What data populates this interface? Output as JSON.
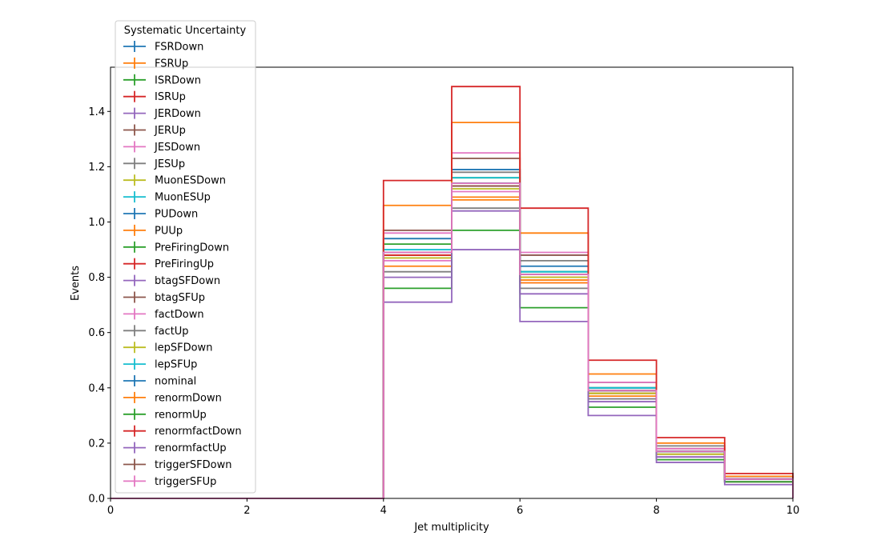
{
  "chart_data": {
    "type": "step",
    "title": "",
    "xlabel": "Jet multiplicity",
    "ylabel": "Events",
    "xlim": [
      0,
      10
    ],
    "ylim": [
      0,
      1.56
    ],
    "xticks": [
      "0",
      "2",
      "4",
      "6",
      "8",
      "10"
    ],
    "yticks": [
      "0.0",
      "0.2",
      "0.4",
      "0.6",
      "0.8",
      "1.0",
      "1.2",
      "1.4"
    ],
    "grid": false,
    "legend_title": "Systematic Uncertainty",
    "legend_position": "upper-left",
    "bin_edges": [
      0,
      1,
      2,
      3,
      4,
      5,
      6,
      7,
      8,
      9,
      10
    ],
    "series": [
      {
        "name": "FSRDown",
        "color": "#1f77b4",
        "values": [
          0,
          0,
          0,
          0,
          0.89,
          1.19,
          0.82,
          0.39,
          0.17,
          0.07
        ]
      },
      {
        "name": "FSRUp",
        "color": "#ff7f0e",
        "values": [
          0,
          0,
          0,
          0,
          0.87,
          1.09,
          0.79,
          0.38,
          0.17,
          0.07
        ]
      },
      {
        "name": "ISRDown",
        "color": "#2ca02c",
        "values": [
          0,
          0,
          0,
          0,
          0.92,
          1.16,
          0.82,
          0.4,
          0.17,
          0.07
        ]
      },
      {
        "name": "ISRUp",
        "color": "#d62728",
        "values": [
          0,
          0,
          0,
          0,
          0.89,
          1.14,
          0.8,
          0.38,
          0.17,
          0.07
        ]
      },
      {
        "name": "JERDown",
        "color": "#9467bd",
        "values": [
          0,
          0,
          0,
          0,
          0.88,
          1.13,
          0.81,
          0.39,
          0.17,
          0.07
        ]
      },
      {
        "name": "JERUp",
        "color": "#8c564b",
        "values": [
          0,
          0,
          0,
          0,
          0.89,
          1.14,
          0.81,
          0.4,
          0.17,
          0.07
        ]
      },
      {
        "name": "JESDown",
        "color": "#e377c2",
        "values": [
          0,
          0,
          0,
          0,
          0.86,
          1.11,
          0.78,
          0.36,
          0.15,
          0.06
        ]
      },
      {
        "name": "JESUp",
        "color": "#7f7f7f",
        "values": [
          0,
          0,
          0,
          0,
          0.94,
          1.18,
          0.86,
          0.42,
          0.19,
          0.08
        ]
      },
      {
        "name": "MuonESDown",
        "color": "#bcbd22",
        "values": [
          0,
          0,
          0,
          0,
          0.88,
          1.13,
          0.81,
          0.39,
          0.17,
          0.07
        ]
      },
      {
        "name": "MuonESUp",
        "color": "#17becf",
        "values": [
          0,
          0,
          0,
          0,
          0.89,
          1.14,
          0.81,
          0.39,
          0.17,
          0.07
        ]
      },
      {
        "name": "PUDown",
        "color": "#1f77b4",
        "values": [
          0,
          0,
          0,
          0,
          0.94,
          1.19,
          0.84,
          0.4,
          0.17,
          0.07
        ]
      },
      {
        "name": "PUUp",
        "color": "#ff7f0e",
        "values": [
          0,
          0,
          0,
          0,
          0.84,
          1.08,
          0.78,
          0.37,
          0.16,
          0.06
        ]
      },
      {
        "name": "PreFiringDown",
        "color": "#2ca02c",
        "values": [
          0,
          0,
          0,
          0,
          0.89,
          1.14,
          0.81,
          0.39,
          0.17,
          0.07
        ]
      },
      {
        "name": "PreFiringUp",
        "color": "#d62728",
        "values": [
          0,
          0,
          0,
          0,
          0.88,
          1.13,
          0.81,
          0.39,
          0.17,
          0.07
        ]
      },
      {
        "name": "btagSFDown",
        "color": "#9467bd",
        "values": [
          0,
          0,
          0,
          0,
          0.8,
          1.04,
          0.74,
          0.35,
          0.15,
          0.06
        ]
      },
      {
        "name": "btagSFUp",
        "color": "#8c564b",
        "values": [
          0,
          0,
          0,
          0,
          0.97,
          1.23,
          0.88,
          0.42,
          0.18,
          0.07
        ]
      },
      {
        "name": "factDown",
        "color": "#e377c2",
        "values": [
          0,
          0,
          0,
          0,
          0.96,
          1.25,
          0.89,
          0.42,
          0.18,
          0.08
        ]
      },
      {
        "name": "factUp",
        "color": "#7f7f7f",
        "values": [
          0,
          0,
          0,
          0,
          0.82,
          1.05,
          0.76,
          0.36,
          0.16,
          0.06
        ]
      },
      {
        "name": "lepSFDown",
        "color": "#bcbd22",
        "values": [
          0,
          0,
          0,
          0,
          0.87,
          1.12,
          0.8,
          0.38,
          0.16,
          0.07
        ]
      },
      {
        "name": "lepSFUp",
        "color": "#17becf",
        "values": [
          0,
          0,
          0,
          0,
          0.9,
          1.16,
          0.82,
          0.4,
          0.17,
          0.07
        ]
      },
      {
        "name": "nominal",
        "color": "#1f77b4",
        "values": [
          0,
          0,
          0,
          0,
          0.89,
          1.14,
          0.81,
          0.39,
          0.17,
          0.07
        ]
      },
      {
        "name": "renormDown",
        "color": "#ff7f0e",
        "values": [
          0,
          0,
          0,
          0,
          1.06,
          1.36,
          0.96,
          0.45,
          0.2,
          0.08
        ]
      },
      {
        "name": "renormUp",
        "color": "#2ca02c",
        "values": [
          0,
          0,
          0,
          0,
          0.76,
          0.97,
          0.69,
          0.33,
          0.14,
          0.06
        ]
      },
      {
        "name": "renormfactDown",
        "color": "#d62728",
        "values": [
          0,
          0,
          0,
          0,
          1.15,
          1.49,
          1.05,
          0.5,
          0.22,
          0.09
        ]
      },
      {
        "name": "renormfactUp",
        "color": "#9467bd",
        "values": [
          0,
          0,
          0,
          0,
          0.71,
          0.9,
          0.64,
          0.3,
          0.13,
          0.05
        ]
      },
      {
        "name": "triggerSFDown",
        "color": "#8c564b",
        "values": [
          0,
          0,
          0,
          0,
          0.89,
          1.13,
          0.81,
          0.39,
          0.17,
          0.07
        ]
      },
      {
        "name": "triggerSFUp",
        "color": "#e377c2",
        "values": [
          0,
          0,
          0,
          0,
          0.89,
          1.14,
          0.81,
          0.39,
          0.17,
          0.07
        ]
      }
    ]
  }
}
